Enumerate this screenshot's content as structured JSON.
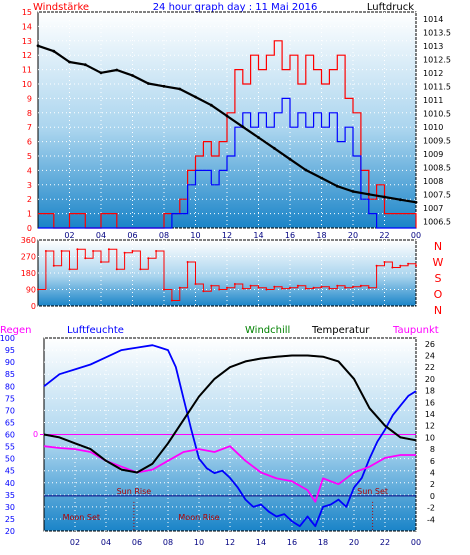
{
  "header": {
    "title": "24 hour graph day : 11 Mai 2016",
    "left_label": "Windstärke",
    "right_label": "Luftdruck"
  },
  "colors": {
    "background": "#ffffff",
    "panel_top": "#ffffff",
    "panel_bottom": "#1a84c8",
    "wind": "#ff0000",
    "gust": "#0000ff",
    "pressure": "#000000",
    "direction": "#ff0000",
    "humidity": "#0000ff",
    "windchill": "#008000",
    "temperature": "#000000",
    "dewpoint": "#ff00ff",
    "rain": "#ff00ff",
    "title": "#0000ff",
    "axis_left": "#ff0000",
    "axis_right": "#000000"
  },
  "time_ticks": [
    "02",
    "04",
    "06",
    "08",
    "10",
    "12",
    "14",
    "16",
    "18",
    "20",
    "22",
    "00"
  ],
  "chart_data": [
    {
      "id": "wind_pressure",
      "type": "line",
      "left_axis": {
        "ticks": [
          0,
          1,
          2,
          3,
          4,
          5,
          6,
          7,
          8,
          9,
          10,
          11,
          12,
          13,
          14,
          15
        ],
        "range": [
          0,
          15
        ]
      },
      "right_axis": {
        "ticks": [
          "1006.5",
          "1007",
          "1007.5",
          "1008",
          "1008.5",
          "1009",
          "1009.5",
          "1010",
          "1010.5",
          "1011",
          "1011.5",
          "1012",
          "1012.5",
          "1013",
          "1013.5",
          "1014"
        ],
        "range": [
          1006.25,
          1014.25
        ]
      },
      "x_range": [
        0,
        24
      ],
      "pressure": {
        "x": [
          0,
          1,
          2,
          3,
          4,
          5,
          6,
          7,
          8,
          9,
          10,
          11,
          12,
          13,
          14,
          15,
          16,
          17,
          18,
          19,
          20,
          21,
          22,
          23,
          24
        ],
        "values": [
          1013.0,
          1012.8,
          1012.4,
          1012.3,
          1012.0,
          1012.1,
          1011.9,
          1011.6,
          1011.5,
          1011.4,
          1011.1,
          1010.8,
          1010.4,
          1010.0,
          1009.6,
          1009.2,
          1008.8,
          1008.4,
          1008.1,
          1007.8,
          1007.6,
          1007.5,
          1007.4,
          1007.3,
          1007.2
        ]
      },
      "wind": {
        "x": [
          0,
          1,
          2,
          3,
          4,
          5,
          6,
          7,
          8,
          8.5,
          9,
          9.5,
          10,
          10.5,
          11,
          11.5,
          12,
          12.5,
          13,
          13.5,
          14,
          14.5,
          15,
          15.5,
          16,
          16.5,
          17,
          17.5,
          18,
          18.5,
          19,
          19.5,
          20,
          20.5,
          21,
          21.5,
          22,
          22.5,
          23,
          23.5,
          24
        ],
        "values": [
          1,
          0,
          1,
          0,
          1,
          0,
          0,
          0,
          1,
          1,
          2,
          4,
          5,
          6,
          5,
          6,
          8,
          11,
          10,
          12,
          11,
          12,
          13,
          11,
          12,
          10,
          12,
          11,
          10,
          11,
          12,
          9,
          8,
          4,
          2,
          3,
          1,
          1,
          1,
          1,
          0
        ]
      },
      "gust": {
        "x": [
          0,
          8,
          8.5,
          9,
          9.5,
          10,
          10.5,
          11,
          11.5,
          12,
          12.5,
          13,
          13.5,
          14,
          14.5,
          15,
          15.5,
          16,
          16.5,
          17,
          17.5,
          18,
          18.5,
          19,
          19.5,
          20,
          20.5,
          21,
          21.5,
          22,
          24
        ],
        "values": [
          0,
          0,
          1,
          1,
          3,
          4,
          4,
          3,
          4,
          5,
          7,
          8,
          7,
          8,
          7,
          8,
          9,
          7,
          8,
          7,
          8,
          7,
          8,
          6,
          7,
          5,
          2,
          1,
          0,
          0,
          0
        ]
      }
    },
    {
      "id": "wind_direction",
      "type": "line",
      "left_axis": {
        "ticks": [
          0,
          90,
          180,
          270,
          360
        ],
        "range": [
          0,
          360
        ]
      },
      "right_axis_labels": [
        "N",
        "W",
        "S",
        "O",
        "N"
      ],
      "x_range": [
        0,
        24
      ],
      "direction": {
        "x": [
          0,
          0.5,
          1,
          1.5,
          2,
          2.5,
          3,
          3.5,
          4,
          4.5,
          5,
          5.5,
          6,
          6.5,
          7,
          7.5,
          8,
          8.5,
          9,
          9.5,
          10,
          10.5,
          11,
          11.5,
          12,
          12.5,
          13,
          13.5,
          14,
          14.5,
          15,
          15.5,
          16,
          16.5,
          17,
          17.5,
          18,
          18.5,
          19,
          19.5,
          20,
          20.5,
          21,
          21.5,
          22,
          22.5,
          23,
          23.5,
          24
        ],
        "values": [
          90,
          300,
          220,
          300,
          200,
          310,
          260,
          300,
          240,
          310,
          200,
          290,
          300,
          200,
          260,
          300,
          90,
          30,
          100,
          240,
          120,
          80,
          110,
          90,
          100,
          120,
          95,
          110,
          100,
          90,
          105,
          95,
          100,
          110,
          95,
          100,
          105,
          95,
          110,
          100,
          105,
          110,
          100,
          220,
          240,
          210,
          220,
          230,
          220
        ]
      }
    },
    {
      "id": "temperature_humidity",
      "type": "line",
      "headers": {
        "rain": "Regen",
        "humidity": "Luftfeuchte",
        "windchill": "Windchill",
        "temperature": "Temperatur",
        "dewpoint": "Taupunkt"
      },
      "left_axis": {
        "ticks": [
          20,
          25,
          30,
          35,
          40,
          45,
          50,
          55,
          60,
          65,
          70,
          75,
          80,
          85,
          90,
          95,
          100
        ],
        "range": [
          20,
          100
        ]
      },
      "rain_axis": {
        "ticks": [
          "0"
        ]
      },
      "right_axis": {
        "ticks": [
          -4,
          -2,
          0,
          2,
          4,
          6,
          8,
          10,
          12,
          14,
          16,
          18,
          20,
          22,
          24,
          26
        ],
        "range": [
          -6,
          27
        ]
      },
      "x_range": [
        0,
        24
      ],
      "humidity": {
        "x": [
          0,
          1,
          2,
          3,
          4,
          5,
          6,
          7,
          7.5,
          8,
          8.5,
          9,
          9.5,
          10,
          10.5,
          11,
          11.5,
          12,
          12.5,
          13,
          13.5,
          14,
          14.5,
          15,
          15.5,
          16,
          16.5,
          17,
          17.5,
          18,
          18.5,
          19,
          19.5,
          20,
          20.5,
          21,
          21.5,
          22,
          22.5,
          23,
          23.5,
          24
        ],
        "values": [
          80,
          85,
          87,
          89,
          92,
          95,
          96,
          97,
          96,
          95,
          88,
          75,
          62,
          50,
          46,
          44,
          45,
          42,
          38,
          33,
          30,
          31,
          28,
          26,
          27,
          24,
          22,
          26,
          22,
          30,
          31,
          33,
          30,
          38,
          42,
          50,
          57,
          62,
          68,
          72,
          76,
          78
        ]
      },
      "temperature": {
        "x": [
          0,
          1,
          2,
          3,
          4,
          5,
          6,
          7,
          8,
          9,
          10,
          11,
          12,
          13,
          14,
          15,
          16,
          17,
          18,
          19,
          20,
          21,
          22,
          23,
          24
        ],
        "values": [
          10.5,
          10,
          9,
          8,
          6,
          4.5,
          4,
          5.5,
          9,
          13,
          17,
          20,
          22,
          23,
          23.5,
          23.8,
          24,
          24,
          23.8,
          23,
          20,
          15,
          12,
          10,
          9.5
        ]
      },
      "windchill": {
        "x": [
          0,
          1,
          2,
          3,
          4,
          5,
          6,
          7,
          8,
          9,
          10,
          11,
          12,
          13,
          14,
          15,
          16,
          17,
          18,
          19,
          20,
          21,
          22,
          23,
          24
        ],
        "values": [
          10.5,
          10,
          9,
          8,
          6,
          4.5,
          4,
          5.5,
          9,
          13,
          17,
          20,
          22,
          23,
          23.5,
          23.8,
          24,
          24,
          23.8,
          23,
          20,
          15,
          12,
          10,
          9.5
        ]
      },
      "dewpoint": {
        "x": [
          0,
          1,
          2,
          3,
          4,
          5,
          6,
          7,
          8,
          9,
          10,
          11,
          12,
          13,
          14,
          15,
          16,
          17,
          17.5,
          18,
          19,
          20,
          21,
          22,
          23,
          24
        ],
        "values": [
          8.5,
          8.2,
          8,
          7.5,
          6,
          5,
          4,
          4.5,
          6,
          7.5,
          8,
          7.5,
          8.5,
          6,
          4,
          3,
          2.5,
          1,
          -1,
          3,
          2,
          4,
          5,
          6.5,
          7,
          7
        ]
      },
      "annotations": {
        "sun_rise": "Sun Rise",
        "sun_set": "Sun Set",
        "moon_set": "Moon Set",
        "moon_rise": "Moon Rise"
      },
      "event_hours": {
        "sun_rise": 5.8,
        "sun_set": 21.2,
        "moon_set": 1.2,
        "moon_rise": 10.0
      }
    }
  ]
}
